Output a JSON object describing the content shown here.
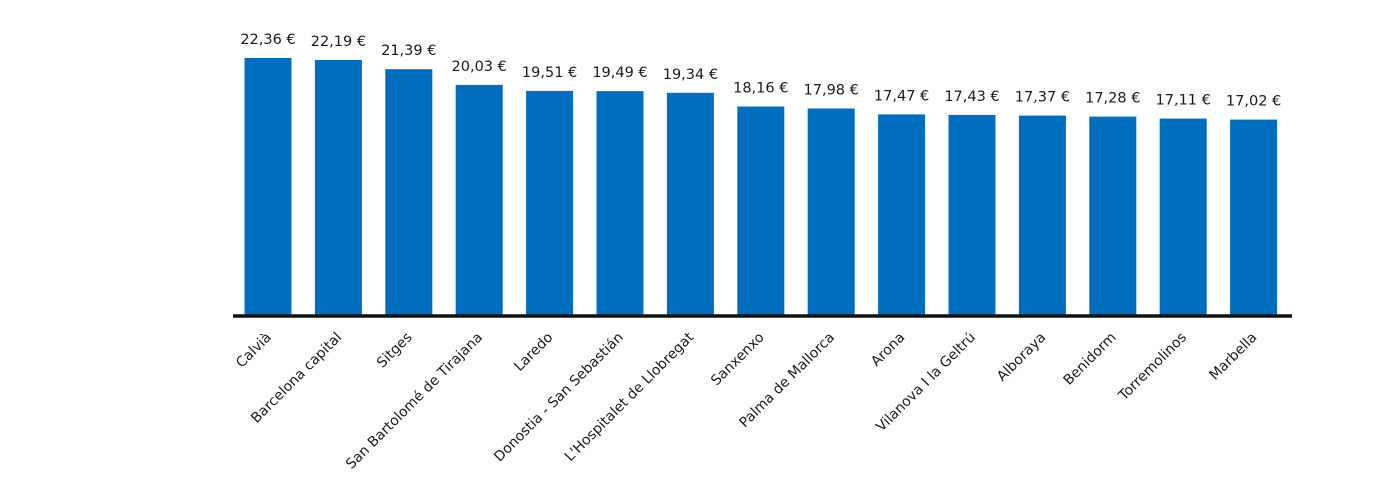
{
  "chart_data": {
    "type": "bar",
    "title": "",
    "xlabel": "",
    "ylabel": "",
    "ylim": [
      0,
      22.36
    ],
    "grid": false,
    "legend": "none",
    "bar_color": "#006dbf",
    "axis_color": "#111111",
    "categories": [
      "Calvià",
      "Barcelona capital",
      "Sitges",
      "San Bartolomé de Tirajana",
      "Laredo",
      "Donostia - San Sebastián",
      "L'Hospitalet de Llobregat",
      "Sanxenxo",
      "Palma de Mallorca",
      "Arona",
      "Vilanova I la Geltrú",
      "Alboraya",
      "Benidorm",
      "Torremolinos",
      "Marbella"
    ],
    "values": [
      22.36,
      22.19,
      21.39,
      20.03,
      19.51,
      19.49,
      19.34,
      18.16,
      17.98,
      17.47,
      17.43,
      17.37,
      17.28,
      17.11,
      17.02
    ],
    "value_labels": [
      "22,36 €",
      "22,19 €",
      "21,39 €",
      "20,03 €",
      "19,51 €",
      "19,49 €",
      "19,34 €",
      "18,16 €",
      "17,98 €",
      "17,47 €",
      "17,43 €",
      "17,37 €",
      "17,28 €",
      "17,11 €",
      "17,02 €"
    ]
  }
}
